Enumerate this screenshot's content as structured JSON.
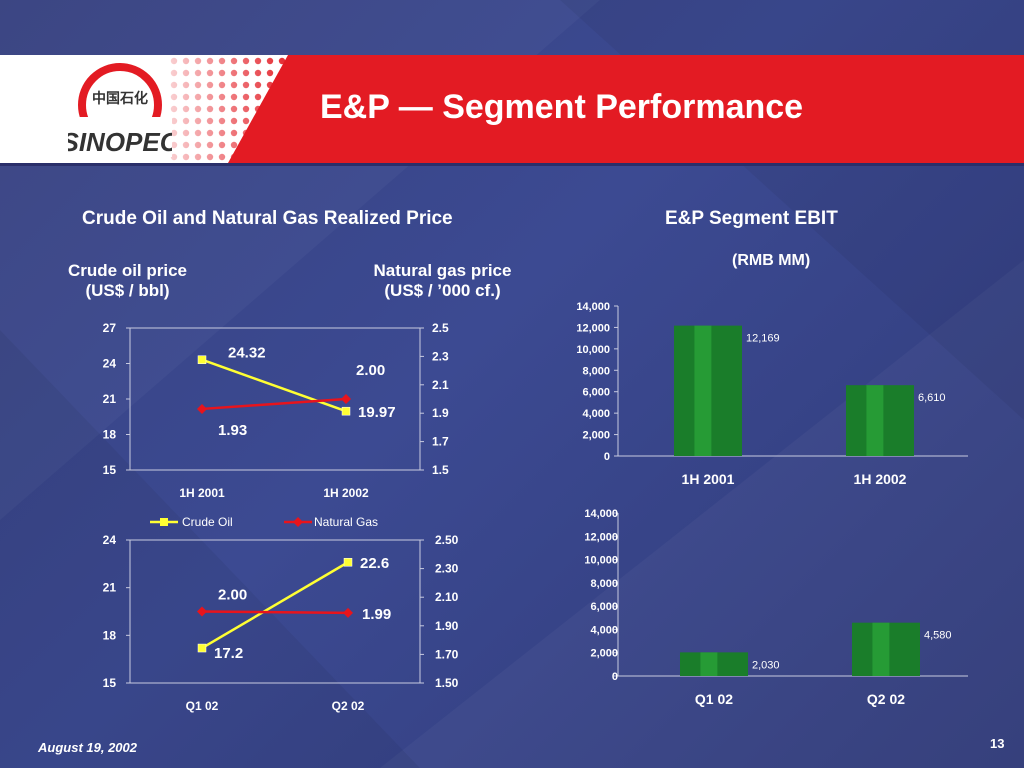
{
  "slide": {
    "title": "E&P — Segment Performance",
    "logo_text": "SINOPEC",
    "date": "August 19, 2002",
    "page_number": "13"
  },
  "left_section": {
    "title": "Crude Oil and Natural Gas Realized Price",
    "left_axis_title_line1": "Crude oil price",
    "left_axis_title_line2": "(US$ / bbl)",
    "right_axis_title_line1": "Natural gas price",
    "right_axis_title_line2": "(US$ / ’000 cf.)"
  },
  "right_section": {
    "title": "E&P Segment EBIT",
    "subtitle": "(RMB MM)"
  },
  "colors": {
    "crude_oil": "#ffff33",
    "natural_gas": "#e8141c",
    "bar": "#1a7d2a",
    "bar_highlight": "#2faf3e",
    "header_red": "#e31b23"
  },
  "chart_data": [
    {
      "id": "price-1h",
      "type": "line",
      "x": [
        "1H 2001",
        "1H 2002"
      ],
      "series": [
        {
          "name": "Crude Oil",
          "axis": "left",
          "values": [
            24.32,
            19.97
          ],
          "labels": [
            "24.32",
            "19.97"
          ],
          "marker": "square"
        },
        {
          "name": "Natural Gas",
          "axis": "right",
          "values": [
            1.93,
            2.0
          ],
          "labels": [
            "1.93",
            "2.00"
          ],
          "marker": "diamond"
        }
      ],
      "ylim_left": [
        15,
        27
      ],
      "yticks_left": [
        "15",
        "18",
        "21",
        "24",
        "27"
      ],
      "ylim_right": [
        1.5,
        2.5
      ],
      "yticks_right": [
        "1.5",
        "1.7",
        "1.9",
        "2.1",
        "2.3",
        "2.5"
      ],
      "legend": "below"
    },
    {
      "id": "price-q",
      "type": "line",
      "x": [
        "Q1 02",
        "Q2 02"
      ],
      "series": [
        {
          "name": "Crude Oil",
          "axis": "left",
          "values": [
            17.2,
            22.6
          ],
          "labels": [
            "17.2",
            "22.6"
          ],
          "marker": "square"
        },
        {
          "name": "Natural Gas",
          "axis": "right",
          "values": [
            2.0,
            1.99
          ],
          "labels": [
            "2.00",
            "1.99"
          ],
          "marker": "diamond"
        }
      ],
      "ylim_left": [
        15,
        24
      ],
      "yticks_left": [
        "15",
        "18",
        "21",
        "24"
      ],
      "ylim_right": [
        1.5,
        2.5
      ],
      "yticks_right": [
        "1.50",
        "1.70",
        "1.90",
        "2.10",
        "2.30",
        "2.50"
      ]
    },
    {
      "id": "ebit-1h",
      "type": "bar",
      "categories": [
        "1H 2001",
        "1H 2002"
      ],
      "values": [
        12169,
        6610
      ],
      "value_labels": [
        "12,169",
        "6,610"
      ],
      "ylim": [
        0,
        14000
      ],
      "yticks": [
        "0",
        "2,000",
        "4,000",
        "6,000",
        "8,000",
        "10,000",
        "12,000",
        "14,000"
      ]
    },
    {
      "id": "ebit-q",
      "type": "bar",
      "categories": [
        "Q1 02",
        "Q2 02"
      ],
      "values": [
        2030,
        4580
      ],
      "value_labels": [
        "2,030",
        "4,580"
      ],
      "ylim": [
        0,
        14000
      ],
      "yticks": [
        "0",
        "2,000",
        "4,000",
        "6,000",
        "8,000",
        "10,000",
        "12,000",
        "14,000"
      ]
    }
  ]
}
